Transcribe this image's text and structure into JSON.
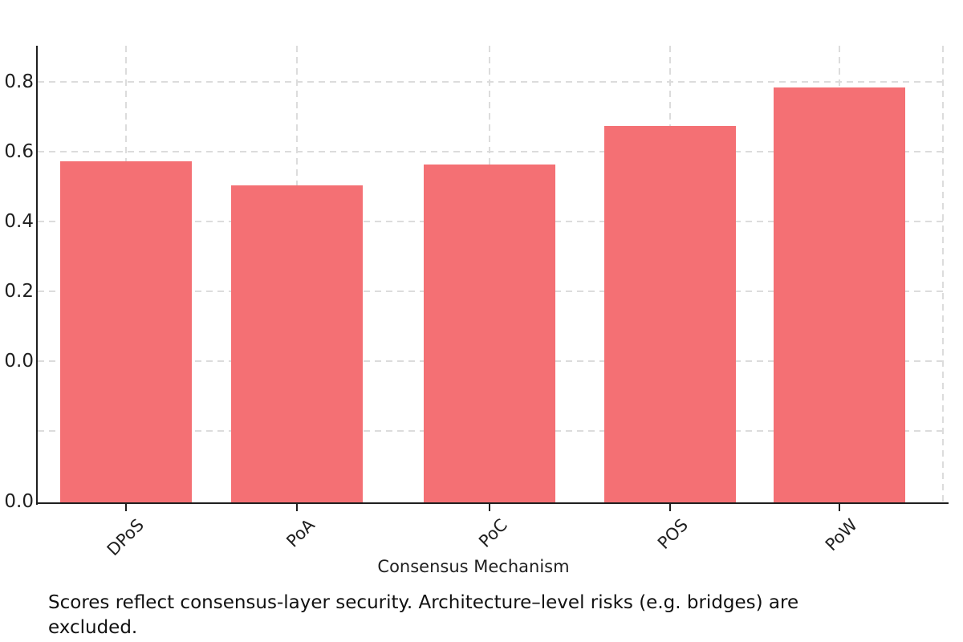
{
  "chart_data": {
    "type": "bar",
    "title": "",
    "xlabel": "Consensus Mechanism",
    "ylabel": "",
    "categories": [
      "DPoS",
      "PoA",
      "PoC",
      "POS",
      "PoW"
    ],
    "values": [
      0.57,
      0.5,
      0.56,
      0.67,
      0.78
    ],
    "ylim": [
      0,
      0.87
    ],
    "ytick_step": 0.2,
    "y_tick_labels_top_to_bottom": [
      "0.8",
      "0.6",
      "0.4",
      "0.2",
      "0.0"
    ],
    "duplicate_baseline_tick_label": "0.0",
    "grid": "dashed",
    "legend": "none",
    "bar_color": "#f47074",
    "grid_color": "#dcdcdc",
    "axis_color": "#1f1f1f",
    "text_color": "#1f1f1f"
  },
  "caption": {
    "lines": [
      "Scores reflect consensus-layer security. Architecture–level risks (e.g. bridges) are",
      "excluded."
    ],
    "full_text": "Scores reflect consensus-layer security. Architecture–level risks (e.g. bridges) are excluded."
  }
}
